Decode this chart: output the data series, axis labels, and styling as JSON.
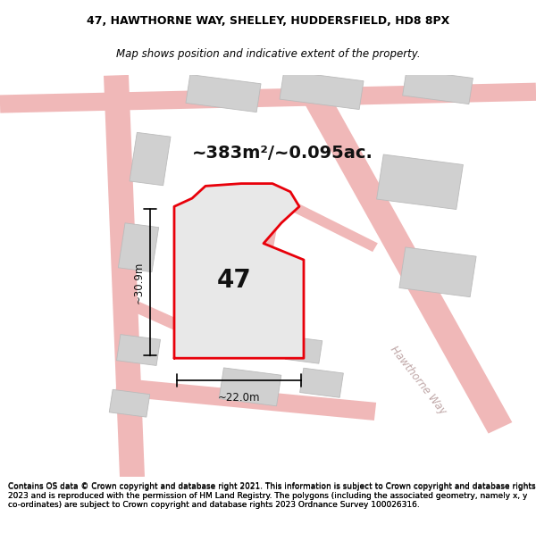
{
  "title_line1": "47, HAWTHORNE WAY, SHELLEY, HUDDERSFIELD, HD8 8PX",
  "title_line2": "Map shows position and indicative extent of the property.",
  "area_text": "~383m²/~0.095ac.",
  "number_label": "47",
  "dim_horizontal": "~22.0m",
  "dim_vertical": "~30.9m",
  "street_label": "Hawthorne Way",
  "footer_text": "Contains OS data © Crown copyright and database right 2021. This information is subject to Crown copyright and database rights 2023 and is reproduced with the permission of HM Land Registry. The polygons (including the associated geometry, namely x, y co-ordinates) are subject to Crown copyright and database rights 2023 Ordnance Survey 100026316.",
  "bg_color": "#ffffff",
  "map_bg": "#f5f5f5",
  "plot_fill": "#e8e8e8",
  "plot_edge": "#e8000a",
  "road_color": "#f0b8b8",
  "road_outline": "#e8a0a0",
  "building_color": "#d0d0d0",
  "building_edge": "#bbbbbb",
  "dim_color": "#000000",
  "title_color": "#000000",
  "footer_color": "#000000",
  "street_label_color": "#c0a8a8",
  "title_fontsize": 9.0,
  "subtitle_fontsize": 8.5,
  "area_fontsize": 14,
  "number_fontsize": 20,
  "dim_fontsize": 8.5,
  "footer_fontsize": 6.5
}
